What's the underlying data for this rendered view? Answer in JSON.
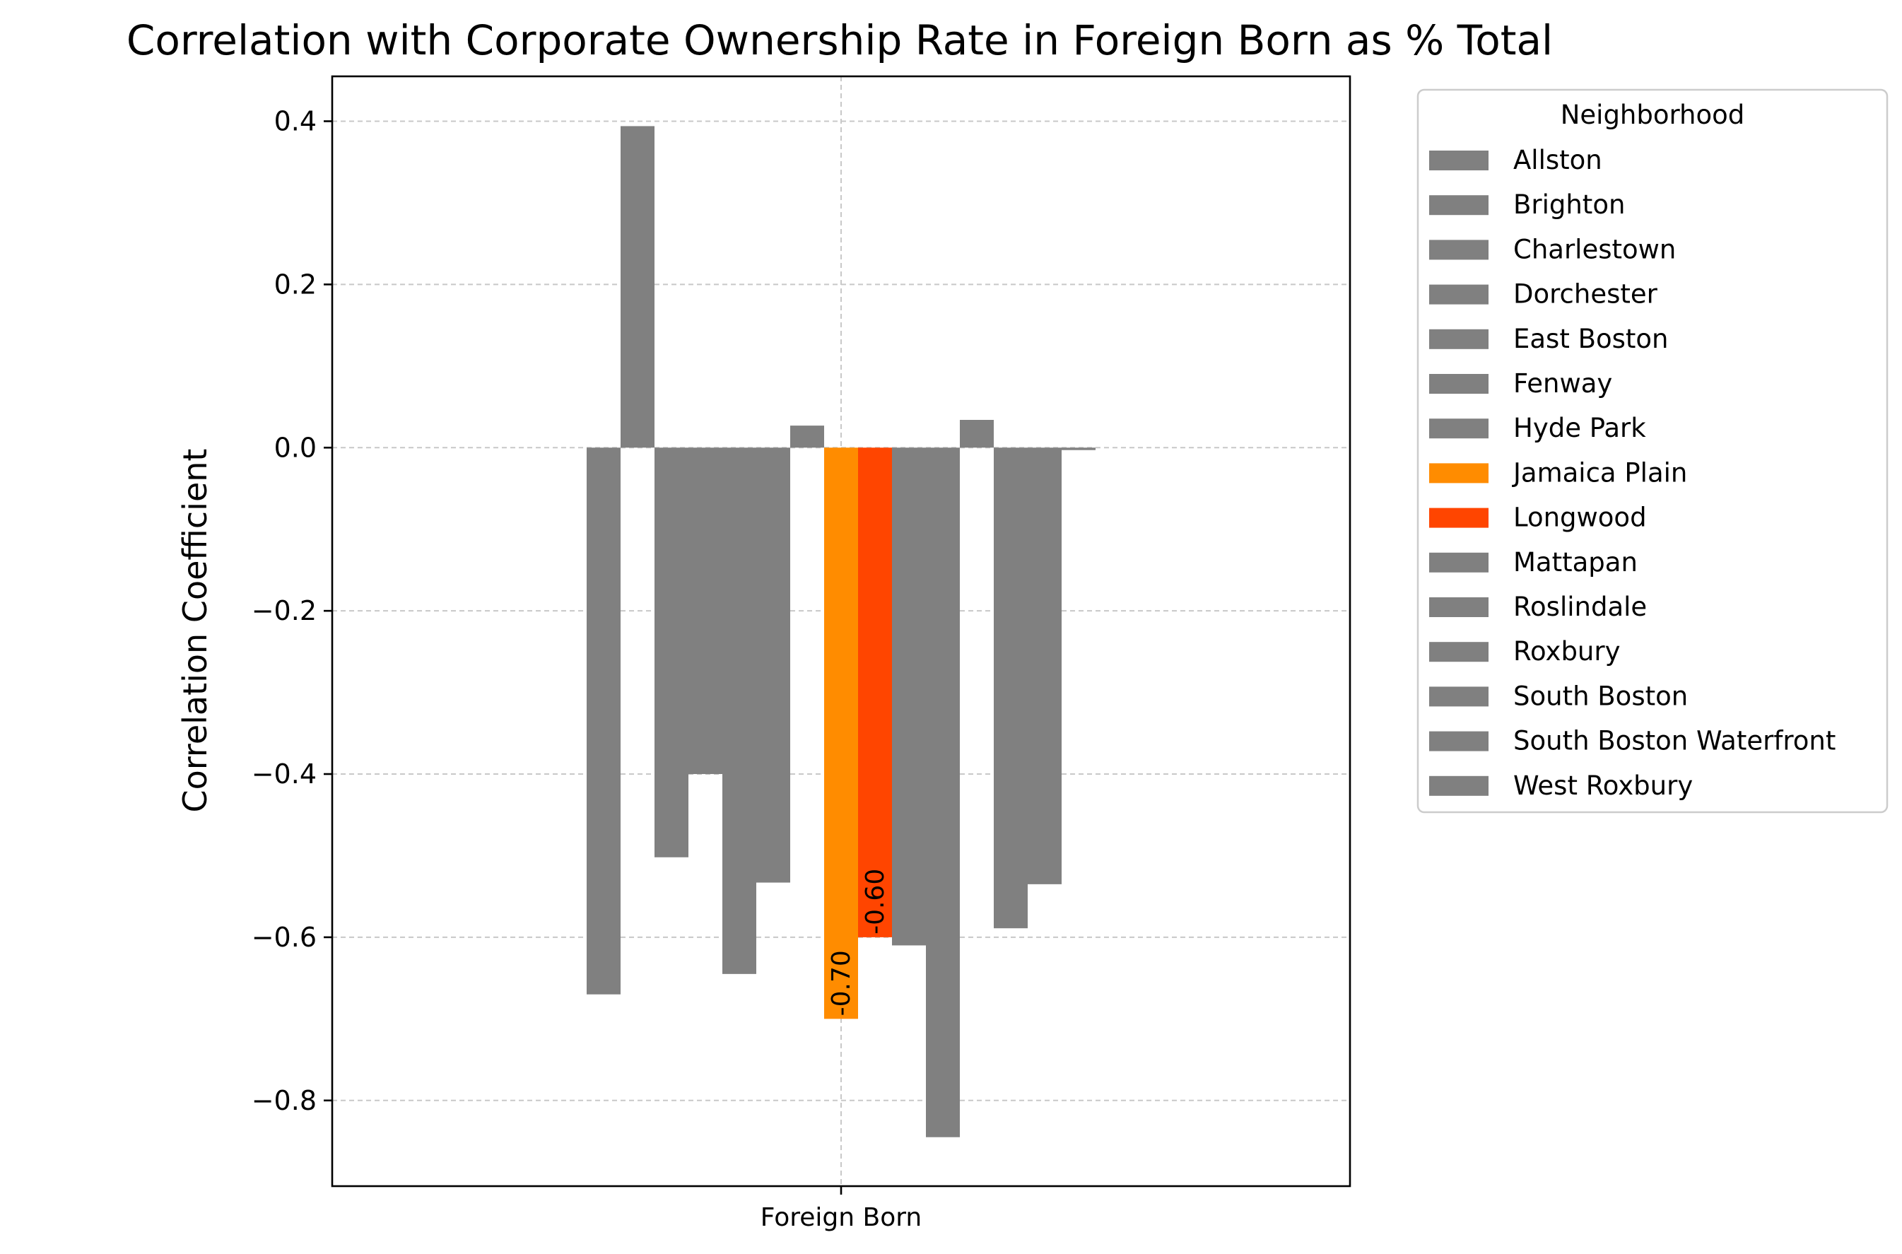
{
  "chart_data": {
    "type": "bar",
    "title": "Correlation with Corporate Ownership Rate in Foreign Born as % Total",
    "xlabel": "",
    "ylabel": "Correlation Coefficient",
    "categories": [
      "Foreign Born"
    ],
    "ylim": [
      -0.905,
      0.455
    ],
    "yticks": [
      -0.8,
      -0.6,
      -0.4,
      -0.2,
      0.0,
      0.2,
      0.4
    ],
    "ytick_labels": [
      "−0.8",
      "−0.6",
      "−0.4",
      "−0.2",
      "0.0",
      "0.2",
      "0.4"
    ],
    "grid": true,
    "legend_title": "Neighborhood",
    "legend_position": "outside upper right",
    "series": [
      {
        "name": "Allston",
        "value": -0.67,
        "color": "#808080"
      },
      {
        "name": "Brighton",
        "value": 0.394,
        "color": "#808080"
      },
      {
        "name": "Charlestown",
        "value": -0.502,
        "color": "#808080"
      },
      {
        "name": "Dorchester",
        "value": -0.4,
        "color": "#808080"
      },
      {
        "name": "East Boston",
        "value": -0.645,
        "color": "#808080"
      },
      {
        "name": "Fenway",
        "value": -0.533,
        "color": "#808080"
      },
      {
        "name": "Hyde Park",
        "value": 0.027,
        "color": "#808080"
      },
      {
        "name": "Jamaica Plain",
        "value": -0.7,
        "color": "#ff8c00",
        "label": "-0.70"
      },
      {
        "name": "Longwood",
        "value": -0.6,
        "color": "#ff4500",
        "label": "-0.60"
      },
      {
        "name": "Mattapan",
        "value": -0.61,
        "color": "#808080"
      },
      {
        "name": "Roslindale",
        "value": -0.845,
        "color": "#808080"
      },
      {
        "name": "Roxbury",
        "value": 0.034,
        "color": "#808080"
      },
      {
        "name": "South Boston",
        "value": -0.589,
        "color": "#808080"
      },
      {
        "name": "South Boston Waterfront",
        "value": -0.535,
        "color": "#808080"
      },
      {
        "name": "West Roxbury",
        "value": -0.003,
        "color": "#808080"
      }
    ]
  }
}
